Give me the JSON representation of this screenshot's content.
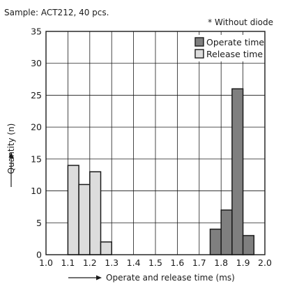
{
  "sample_note": "Sample: ACT212, 40 pcs.",
  "chart_data": {
    "type": "histogram",
    "note": "* Without diode",
    "xlabel": "Operate and release time (ms)",
    "ylabel": "Quantity (n)",
    "xlim": [
      1.0,
      2.0
    ],
    "ylim": [
      0,
      35
    ],
    "x_ticks": [
      "1.0",
      "1.1",
      "1.2",
      "1.3",
      "1.4",
      "1.5",
      "1.6",
      "1.7",
      "1.8",
      "1.9",
      "2.0"
    ],
    "y_ticks": [
      "0",
      "5",
      "10",
      "15",
      "20",
      "25",
      "30",
      "35"
    ],
    "grid": true,
    "legend_position": "top-right",
    "series": [
      {
        "name": "Operate time",
        "color": "#7f7f7f",
        "bins": [
          {
            "x0": 1.75,
            "x1": 1.8,
            "value": 4
          },
          {
            "x0": 1.8,
            "x1": 1.85,
            "value": 7
          },
          {
            "x0": 1.85,
            "x1": 1.9,
            "value": 26
          },
          {
            "x0": 1.9,
            "x1": 1.95,
            "value": 3
          }
        ]
      },
      {
        "name": "Release time",
        "color": "#dcdcdc",
        "bins": [
          {
            "x0": 1.1,
            "x1": 1.15,
            "value": 14
          },
          {
            "x0": 1.15,
            "x1": 1.2,
            "value": 11
          },
          {
            "x0": 1.2,
            "x1": 1.25,
            "value": 13
          },
          {
            "x0": 1.25,
            "x1": 1.3,
            "value": 2
          }
        ]
      }
    ]
  }
}
